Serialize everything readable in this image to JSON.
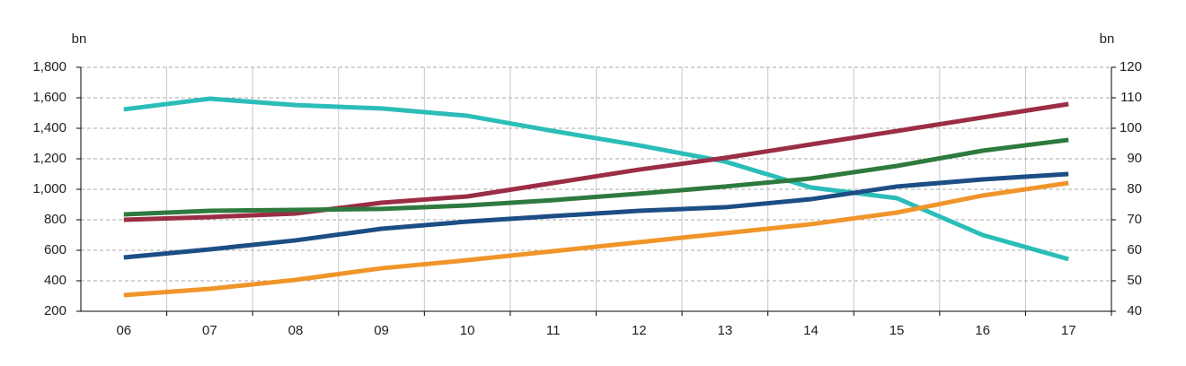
{
  "chart_data": {
    "type": "line",
    "ylabel": "bn",
    "y2label": "bn",
    "categories": [
      "06",
      "07",
      "08",
      "09",
      "10",
      "11",
      "12",
      "13",
      "14",
      "15",
      "16",
      "17"
    ],
    "series": [
      {
        "color": "#2bbdb8",
        "axis": "y2",
        "values": [
          106.2,
          109.7,
          107.6,
          106.5,
          104.1,
          99.1,
          94.4,
          89.1,
          80.6,
          77.1,
          65,
          57.1
        ]
      },
      {
        "color": "#9b2d45",
        "values": [
          800,
          818,
          841,
          912,
          953,
          1041,
          1129,
          1206,
          1294,
          1382,
          1471,
          1559
        ]
      },
      {
        "color": "#2e7a3e",
        "values": [
          835,
          859,
          865,
          871,
          894,
          929,
          971,
          1018,
          1071,
          1153,
          1253,
          1324
        ]
      },
      {
        "color": "#1c4e85",
        "values": [
          553,
          606,
          665,
          741,
          788,
          824,
          859,
          882,
          935,
          1018,
          1065,
          1100
        ]
      },
      {
        "color": "#f0952a",
        "values": [
          306,
          347,
          406,
          482,
          535,
          594,
          653,
          712,
          771,
          847,
          959,
          1041
        ]
      }
    ],
    "ylim": [
      200,
      1800
    ],
    "yticks": [
      200,
      400,
      600,
      800,
      {
        "value": 1000,
        "label": "1,000"
      },
      {
        "value": 1200,
        "label": "1,200"
      },
      {
        "value": 1400,
        "label": "1,400"
      },
      {
        "value": 1600,
        "label": "1,600"
      },
      {
        "value": 1800,
        "label": "1,800"
      }
    ],
    "y2lim": [
      40,
      120
    ],
    "y2ticks": [
      40,
      50,
      60,
      70,
      80,
      90,
      100,
      110,
      120
    ],
    "grid": true
  }
}
